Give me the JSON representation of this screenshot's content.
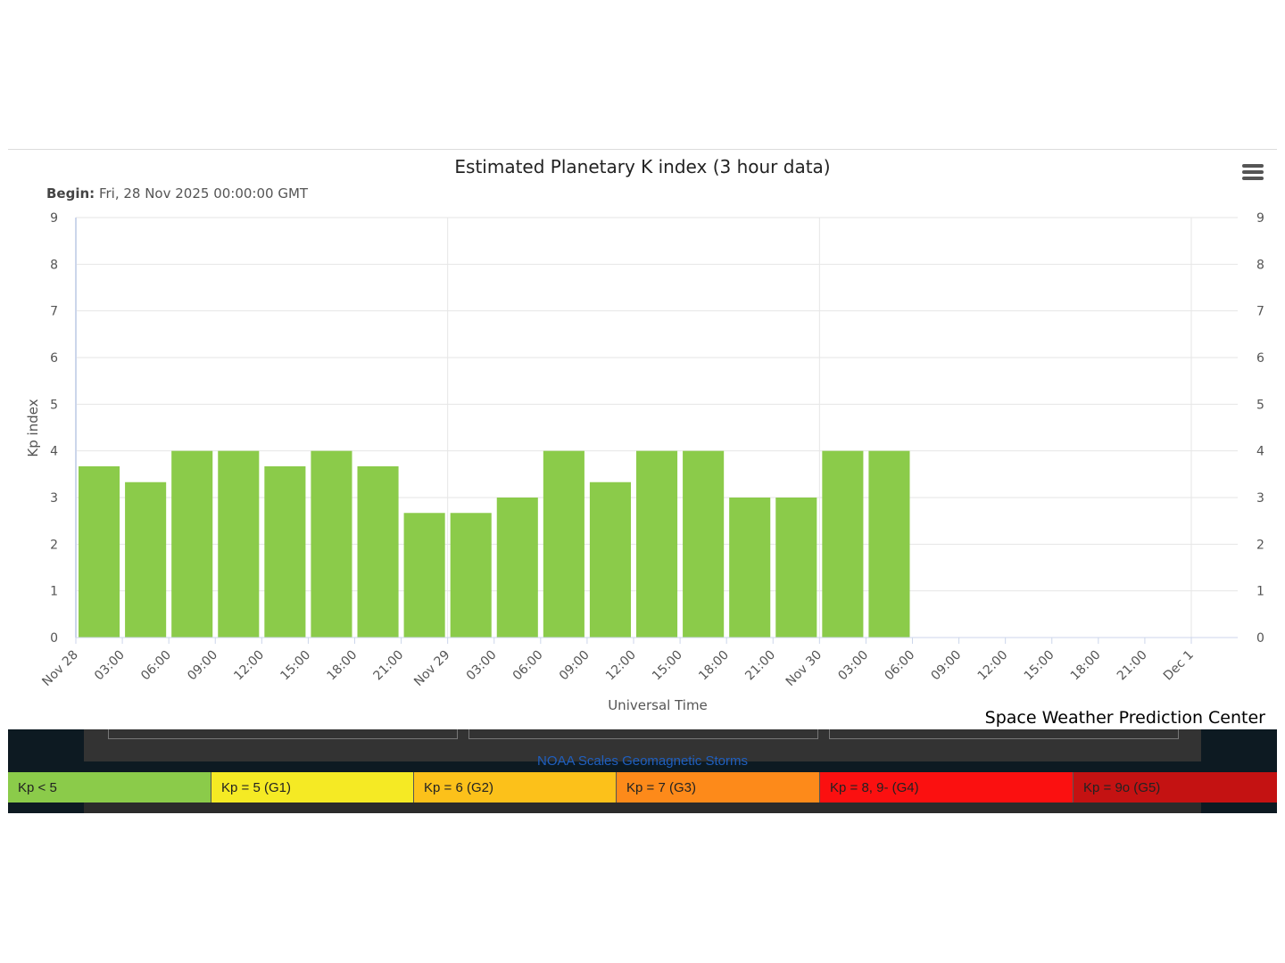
{
  "chart_data": {
    "type": "bar",
    "title": "Estimated Planetary K index (3 hour data)",
    "subtitle_label": "Begin:",
    "subtitle_value": "Fri, 28 Nov 2025 00:00:00 GMT",
    "xlabel": "Universal Time",
    "ylabel": "Kp index",
    "ylim": [
      0,
      9
    ],
    "yticks": [
      "0",
      "1",
      "2",
      "3",
      "4",
      "5",
      "6",
      "7",
      "8",
      "9"
    ],
    "x_tick_labels": [
      "Nov 28",
      "03:00",
      "06:00",
      "09:00",
      "12:00",
      "15:00",
      "18:00",
      "21:00",
      "Nov 29",
      "03:00",
      "06:00",
      "09:00",
      "12:00",
      "15:00",
      "18:00",
      "21:00",
      "Nov 30",
      "03:00",
      "06:00",
      "09:00",
      "12:00",
      "15:00",
      "18:00",
      "21:00",
      "Dec 1"
    ],
    "values": [
      3.67,
      3.33,
      4.0,
      4.0,
      3.67,
      4.0,
      3.67,
      2.67,
      2.67,
      3.0,
      4.0,
      3.33,
      4.0,
      4.0,
      3.0,
      3.0,
      4.0,
      4.0
    ],
    "bar_color": "#8bcb4a",
    "grid": true,
    "legend": "none"
  },
  "menu_icon": "hamburger-menu-icon",
  "credit": "Space Weather Prediction Center",
  "footer": {
    "noaa_scales_link": "NOAA Scales Geomagnetic Storms"
  },
  "scale_bar": [
    {
      "label": "Kp < 5",
      "color": "#8bcb4a"
    },
    {
      "label": "Kp = 5 (G1)",
      "color": "#f5ea24"
    },
    {
      "label": "Kp = 6 (G2)",
      "color": "#fcc11a"
    },
    {
      "label": "Kp = 7 (G3)",
      "color": "#fd8a1a"
    },
    {
      "label": "Kp = 8, 9- (G4)",
      "color": "#fb1010"
    },
    {
      "label": "Kp = 9o (G5)",
      "color": "#c41212"
    }
  ]
}
